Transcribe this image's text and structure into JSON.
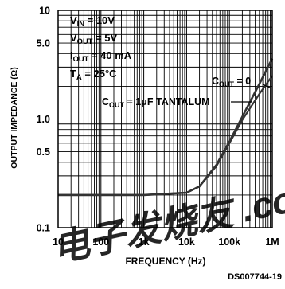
{
  "chart_data": {
    "type": "line",
    "xlabel": "FREQUENCY (Hz)",
    "ylabel": "OUTPUT IMPEDANCE (Ω)",
    "xscale": "log",
    "yscale": "log",
    "xlim": [
      10,
      1000000
    ],
    "ylim": [
      0.1,
      10
    ],
    "grid": true,
    "x_ticks": [
      {
        "value": 10,
        "label": "10"
      },
      {
        "value": 100,
        "label": "100"
      },
      {
        "value": 1000,
        "label": "1k"
      },
      {
        "value": 10000,
        "label": "10k"
      },
      {
        "value": 100000,
        "label": "100k"
      },
      {
        "value": 1000000,
        "label": "1M"
      }
    ],
    "y_ticks": [
      {
        "value": 10,
        "label": "10"
      },
      {
        "value": 5,
        "label": "5.0"
      },
      {
        "value": 1,
        "label": "1.0"
      },
      {
        "value": 0.5,
        "label": "0.5"
      },
      {
        "value": 0.1,
        "label": "0.1"
      }
    ],
    "conditions": [
      {
        "sym": "V",
        "sub": "IN",
        "rest": " = 10V"
      },
      {
        "sym": "V",
        "sub": "OUT",
        "rest": " = 5V"
      },
      {
        "sym": "I",
        "sub": "OUT",
        "rest": " = 40 mA"
      },
      {
        "sym": "T",
        "sub": "A",
        "rest": " = 25°C"
      }
    ],
    "series": [
      {
        "name": "C_OUT = 0",
        "label": {
          "sym": "C",
          "sub": "OUT",
          "rest": " = 0"
        },
        "x": [
          10,
          100,
          1000,
          10000,
          20000,
          50000,
          100000,
          200000,
          500000,
          1000000
        ],
        "y": [
          0.2,
          0.2,
          0.2,
          0.21,
          0.24,
          0.38,
          0.62,
          1.05,
          2.1,
          3.6
        ]
      },
      {
        "name": "C_OUT = 1μF TANTALUM",
        "label": {
          "sym": "C",
          "sub": "OUT",
          "rest": " = 1μF TANTALUM"
        },
        "x": [
          10,
          100,
          1000,
          10000,
          20000,
          50000,
          100000,
          200000,
          500000,
          1000000
        ],
        "y": [
          0.2,
          0.2,
          0.2,
          0.21,
          0.24,
          0.37,
          0.6,
          0.98,
          1.7,
          2.5
        ]
      }
    ],
    "watermark": "电子发烧友 .com.cn",
    "footer_code": "DS007744-19",
    "colors": {
      "line": "#333333",
      "grid": "#000000",
      "watermark": "#d93030"
    }
  }
}
